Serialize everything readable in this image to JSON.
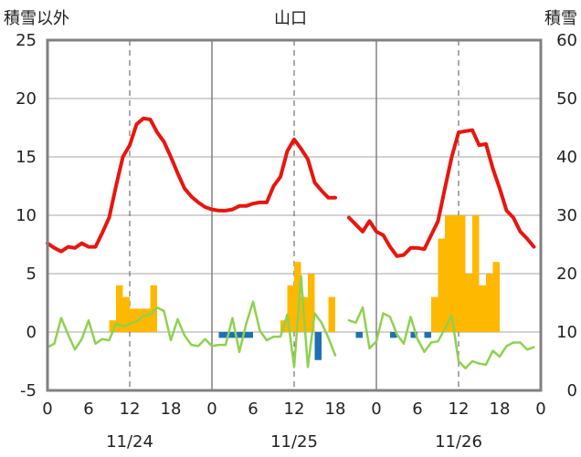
{
  "chart_data": {
    "type": "line",
    "title": "山口",
    "left_axis_label": "積雪以外",
    "right_axis_label": "積雪",
    "left_ylim": [
      -5,
      25
    ],
    "left_ticks": [
      "25",
      "20",
      "15",
      "10",
      "5",
      "0",
      "-5"
    ],
    "right_ylim": [
      0,
      60
    ],
    "right_ticks": [
      "60",
      "50",
      "40",
      "30",
      "20",
      "10",
      "0"
    ],
    "x_tick_labels": [
      "0",
      "6",
      "12",
      "18",
      "0",
      "6",
      "12",
      "18",
      "0",
      "6",
      "12",
      "18",
      "0"
    ],
    "date_labels": [
      "11/24",
      "11/25",
      "11/26"
    ],
    "grid": "dashed vertical lines at 12:00 each day, solid day separators",
    "colors": {
      "temperature": "#e8160e",
      "snowfall_positive": "#ffb800",
      "snowfall_negative": "#1f6fb5",
      "precipitation": "#8fd14f",
      "snow_depth": "#7030a0",
      "frame": "#808080"
    },
    "series": [
      {
        "key": "temperature",
        "axis": "left",
        "points": [
          [
            0,
            7.6
          ],
          [
            1,
            7.2
          ],
          [
            2,
            6.9
          ],
          [
            3,
            7.3
          ],
          [
            4,
            7.2
          ],
          [
            5,
            7.6
          ],
          [
            6,
            7.3
          ],
          [
            7,
            7.3
          ],
          [
            8,
            8.5
          ],
          [
            9,
            9.8
          ],
          [
            10,
            12.5
          ],
          [
            11,
            15
          ],
          [
            12,
            16
          ],
          [
            13,
            17.8
          ],
          [
            14,
            18.3
          ],
          [
            15,
            18.2
          ],
          [
            16,
            17.1
          ],
          [
            17,
            16.3
          ],
          [
            18,
            15
          ],
          [
            19,
            13.6
          ],
          [
            20,
            12.3
          ],
          [
            21,
            11.6
          ],
          [
            22,
            11.1
          ],
          [
            23,
            10.7
          ],
          [
            24,
            10.5
          ],
          [
            25,
            10.4
          ],
          [
            26,
            10.4
          ],
          [
            27,
            10.5
          ],
          [
            28,
            10.8
          ],
          [
            29,
            10.8
          ],
          [
            30,
            11
          ],
          [
            31,
            11.1
          ],
          [
            32,
            11.1
          ],
          [
            33,
            12.5
          ],
          [
            34,
            13.3
          ],
          [
            35,
            15.5
          ],
          [
            36,
            16.5
          ],
          [
            37,
            15.7
          ],
          [
            38,
            14.8
          ],
          [
            39,
            12.8
          ],
          [
            40,
            12.1
          ],
          [
            41,
            11.5
          ],
          [
            42,
            11.5
          ],
          null,
          [
            44,
            9.8
          ],
          [
            45,
            9.2
          ],
          [
            46,
            8.6
          ],
          [
            47,
            9.5
          ],
          [
            48,
            8.6
          ],
          [
            49,
            8.3
          ],
          [
            50,
            7.3
          ],
          [
            51,
            6.5
          ],
          [
            52,
            6.6
          ],
          [
            53,
            7.2
          ],
          [
            54,
            7.2
          ],
          [
            55,
            7.1
          ],
          [
            56,
            8.3
          ],
          [
            57,
            9.5
          ],
          [
            58,
            12.3
          ],
          [
            59,
            15
          ],
          [
            60,
            17.1
          ],
          [
            61,
            17.2
          ],
          [
            62,
            17.3
          ],
          [
            63,
            16
          ],
          [
            64,
            16.1
          ],
          [
            65,
            14
          ],
          [
            66,
            12.3
          ],
          [
            67,
            10.4
          ],
          [
            68,
            9.8
          ],
          [
            69,
            8.6
          ],
          [
            70,
            8
          ],
          [
            71,
            7.3
          ]
        ]
      },
      {
        "key": "precipitation",
        "axis": "left",
        "points": [
          [
            0,
            -1.3
          ],
          [
            1,
            -1
          ],
          [
            2,
            1.2
          ],
          [
            3,
            -0.2
          ],
          [
            4,
            -1.5
          ],
          [
            5,
            -0.6
          ],
          [
            6,
            1
          ],
          [
            7,
            -1
          ],
          [
            8,
            -0.6
          ],
          [
            9,
            -0.7
          ],
          [
            10,
            0.7
          ],
          [
            11,
            0.5
          ],
          [
            12,
            0.7
          ],
          [
            13,
            0.9
          ],
          [
            14,
            1.4
          ],
          [
            15,
            1.5
          ],
          [
            16,
            2.1
          ],
          [
            17,
            1.8
          ],
          [
            18,
            -0.7
          ],
          [
            19,
            1.1
          ],
          [
            20,
            -0.3
          ],
          [
            21,
            -1.1
          ],
          [
            22,
            -1.2
          ],
          [
            23,
            -0.6
          ],
          [
            24,
            -1.2
          ],
          [
            25,
            -1.1
          ],
          [
            26,
            -1.1
          ],
          [
            27,
            1.2
          ],
          [
            28,
            -1.7
          ],
          [
            29,
            0.7
          ],
          [
            30,
            2.6
          ],
          [
            31,
            0.1
          ],
          [
            32,
            -0.7
          ],
          [
            33,
            -0.4
          ],
          [
            34,
            -0.4
          ],
          [
            35,
            1.5
          ],
          [
            36,
            -3
          ],
          [
            37,
            4.8
          ],
          [
            38,
            -3
          ],
          [
            39,
            1.6
          ],
          [
            40,
            0.8
          ],
          [
            41,
            -0.5
          ],
          [
            42,
            -2
          ],
          null,
          [
            44,
            1
          ],
          [
            45,
            0.8
          ],
          [
            46,
            2.1
          ],
          [
            47,
            -1.4
          ],
          [
            48,
            -0.8
          ],
          [
            49,
            1.6
          ],
          [
            50,
            1.3
          ],
          [
            51,
            -0.2
          ],
          [
            52,
            -1
          ],
          [
            53,
            1.3
          ],
          [
            54,
            -0.6
          ],
          [
            55,
            -1.7
          ],
          [
            56,
            -0.9
          ],
          [
            57,
            -0.8
          ],
          [
            58,
            0.3
          ],
          [
            59,
            1.4
          ],
          [
            60,
            -2.5
          ],
          [
            61,
            -3.1
          ],
          [
            62,
            -2.5
          ],
          [
            63,
            -2.7
          ],
          [
            64,
            -2.8
          ],
          [
            65,
            -1.6
          ],
          [
            66,
            -2.1
          ],
          [
            67,
            -1.2
          ],
          [
            68,
            -0.9
          ],
          [
            69,
            -0.9
          ],
          [
            70,
            -1.5
          ],
          [
            71,
            -1.3
          ]
        ]
      },
      {
        "key": "snowfall",
        "type": "bar",
        "axis": "left",
        "points": [
          [
            9,
            1
          ],
          [
            10,
            4
          ],
          [
            11,
            3
          ],
          [
            12,
            2
          ],
          [
            13,
            2
          ],
          [
            14,
            2
          ],
          [
            15,
            4
          ],
          [
            25,
            -0.5
          ],
          [
            26,
            -0.5
          ],
          [
            27,
            -0.5
          ],
          [
            28,
            -0.5
          ],
          [
            29,
            -0.5
          ],
          [
            34,
            1
          ],
          [
            35,
            4
          ],
          [
            36,
            6
          ],
          [
            37,
            3
          ],
          [
            38,
            5
          ],
          [
            39,
            -2.4
          ],
          [
            41,
            3
          ],
          [
            45,
            -0.5
          ],
          [
            50,
            -0.5
          ],
          [
            53,
            -0.5
          ],
          [
            55,
            -0.5
          ],
          [
            56,
            3
          ],
          [
            57,
            8
          ],
          [
            58,
            10
          ],
          [
            59,
            10
          ],
          [
            60,
            10
          ],
          [
            61,
            5
          ],
          [
            62,
            10
          ],
          [
            63,
            4
          ],
          [
            64,
            5
          ],
          [
            65,
            6
          ]
        ]
      },
      {
        "key": "snow_depth",
        "axis": "right",
        "points": [
          [
            0,
            0
          ],
          [
            72,
            0
          ]
        ]
      }
    ]
  }
}
